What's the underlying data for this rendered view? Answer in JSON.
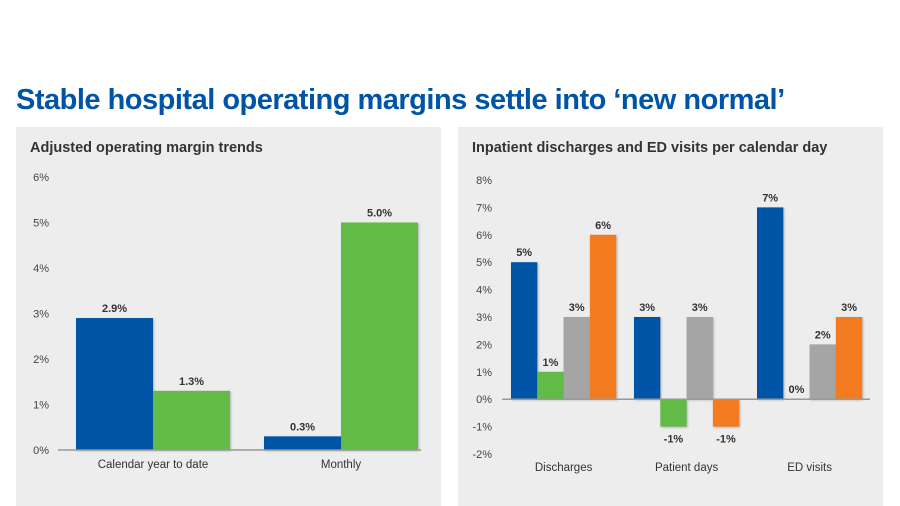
{
  "title": "Stable hospital operating margins settle into ‘new normal’",
  "chart_data": [
    {
      "type": "bar",
      "title": "Adjusted operating margin trends",
      "categories": [
        "Calendar year to date",
        "Monthly"
      ],
      "series": [
        {
          "values": [
            2.9,
            0.3
          ],
          "labels": [
            "2.9%",
            "0.3%"
          ],
          "color": "#0054a6"
        },
        {
          "values": [
            1.3,
            5.0
          ],
          "labels": [
            "1.3%",
            "5.0%"
          ],
          "color": "#62bb46"
        }
      ],
      "ylim": [
        0,
        6
      ],
      "yticks": [
        "0%",
        "1%",
        "2%",
        "3%",
        "4%",
        "5%",
        "6%"
      ],
      "grid": false,
      "legend": "none"
    },
    {
      "type": "bar",
      "title": "Inpatient discharges and ED visits per calendar day",
      "categories": [
        "Discharges",
        "Patient days",
        "ED visits"
      ],
      "series": [
        {
          "values": [
            5,
            3,
            7
          ],
          "labels": [
            "5%",
            "3%",
            "7%"
          ],
          "color": "#0054a6"
        },
        {
          "values": [
            1,
            -1,
            0
          ],
          "labels": [
            "1%",
            "-1%",
            "0%"
          ],
          "color": "#62bb46"
        },
        {
          "values": [
            3,
            3,
            2
          ],
          "labels": [
            "3%",
            "3%",
            "2%"
          ],
          "color": "#a5a5a5"
        },
        {
          "values": [
            6,
            -1,
            3
          ],
          "labels": [
            "6%",
            "-1%",
            "3%"
          ],
          "color": "#f47b20"
        }
      ],
      "ylim": [
        -2,
        8
      ],
      "yticks": [
        "-2%",
        "-1%",
        "0%",
        "1%",
        "2%",
        "3%",
        "4%",
        "5%",
        "6%",
        "7%",
        "8%"
      ],
      "grid": false,
      "legend": "none"
    }
  ]
}
